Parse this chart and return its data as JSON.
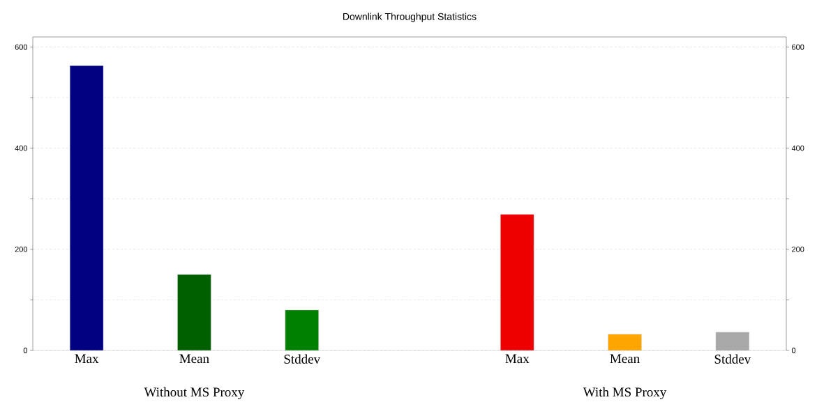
{
  "chart_data": {
    "type": "bar",
    "title": "Downlink Throughput Statistics",
    "categories": [
      "Max",
      "Mean",
      "Stddev",
      null,
      "Max",
      "Mean",
      "Stddev"
    ],
    "values": [
      563,
      150,
      80,
      null,
      269,
      32,
      36
    ],
    "colors": [
      "#000080",
      "#006000",
      "#008000",
      null,
      "#ee0000",
      "#ffa500",
      "#a8a8a8"
    ],
    "ylim": [
      0,
      620
    ],
    "yticks": [
      0,
      {
        "value": 100,
        "label": null
      },
      200,
      {
        "value": 300,
        "label": null
      },
      400,
      {
        "value": 500,
        "label": null
      },
      600
    ],
    "y2lim": [
      0,
      620
    ],
    "y2ticks": [
      0,
      {
        "value": 100,
        "label": null
      },
      200,
      {
        "value": 300,
        "label": null
      },
      400,
      {
        "value": 500,
        "label": null
      },
      600
    ],
    "grid": "y",
    "annotations": [
      "Without MS Proxy",
      "With MS Proxy"
    ]
  }
}
